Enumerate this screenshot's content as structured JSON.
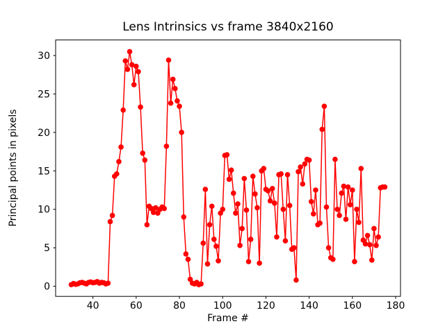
{
  "chart_data": {
    "type": "line",
    "title": "Lens Intrinsics vs frame 3840x2160",
    "xlabel": "Frame #",
    "ylabel": "Principal points in pixels",
    "legend": null,
    "grid": false,
    "line_color": "#ff0000",
    "marker": "o",
    "x_ticks": [
      40,
      60,
      80,
      100,
      120,
      140,
      160,
      180
    ],
    "y_ticks": [
      0,
      5,
      10,
      15,
      20,
      25,
      30
    ],
    "xlim": [
      22.75,
      182.25
    ],
    "ylim": [
      -1.32,
      32.02
    ],
    "x": [
      30,
      31,
      32,
      33,
      34,
      35,
      36,
      37,
      38,
      39,
      40,
      41,
      42,
      43,
      44,
      45,
      46,
      47,
      48,
      49,
      50,
      51,
      52,
      53,
      54,
      55,
      56,
      57,
      58,
      59,
      60,
      61,
      62,
      63,
      64,
      65,
      66,
      67,
      68,
      69,
      70,
      71,
      72,
      73,
      74,
      75,
      76,
      77,
      78,
      79,
      80,
      81,
      82,
      83,
      84,
      85,
      86,
      87,
      88,
      89,
      90,
      91,
      92,
      93,
      94,
      95,
      96,
      97,
      98,
      99,
      100,
      101,
      102,
      103,
      104,
      105,
      106,
      107,
      108,
      109,
      110,
      111,
      112,
      113,
      114,
      115,
      116,
      117,
      118,
      119,
      120,
      121,
      122,
      123,
      124,
      125,
      126,
      127,
      128,
      129,
      130,
      131,
      132,
      133,
      134,
      135,
      136,
      137,
      138,
      139,
      140,
      141,
      142,
      143,
      144,
      145,
      146,
      147,
      148,
      149,
      150,
      151,
      152,
      153,
      154,
      155,
      156,
      157,
      158,
      159,
      160,
      161,
      162,
      163,
      164,
      165,
      166,
      167,
      168,
      169,
      170,
      171,
      172,
      173,
      174,
      175
    ],
    "y": [
      0.2,
      0.35,
      0.25,
      0.3,
      0.45,
      0.5,
      0.4,
      0.3,
      0.5,
      0.55,
      0.45,
      0.5,
      0.6,
      0.4,
      0.5,
      0.45,
      0.3,
      0.4,
      8.4,
      9.2,
      14.3,
      14.6,
      16.2,
      18.1,
      22.9,
      29.3,
      28.2,
      30.5,
      28.8,
      26.2,
      28.6,
      27.9,
      23.3,
      17.3,
      16.4,
      8.0,
      10.4,
      10.1,
      9.6,
      10.2,
      9.5,
      10.0,
      10.3,
      10.1,
      18.2,
      29.4,
      23.8,
      26.9,
      25.7,
      24.1,
      23.4,
      20.0,
      9.0,
      4.2,
      3.5,
      0.9,
      0.4,
      0.3,
      0.5,
      0.2,
      0.3,
      5.6,
      12.6,
      2.9,
      8.0,
      10.4,
      6.1,
      5.2,
      3.3,
      9.5,
      10.0,
      17.0,
      17.1,
      13.9,
      15.1,
      12.1,
      9.5,
      10.7,
      5.3,
      7.5,
      14.0,
      9.9,
      3.2,
      6.1,
      14.3,
      12.0,
      10.2,
      3.0,
      15.0,
      15.3,
      12.6,
      12.4,
      11.1,
      12.7,
      10.8,
      6.4,
      14.5,
      14.6,
      10.0,
      5.9,
      14.5,
      10.5,
      4.8,
      5.0,
      0.8,
      14.9,
      15.5,
      13.3,
      15.9,
      16.5,
      16.4,
      11.0,
      9.4,
      12.5,
      8.0,
      8.2,
      20.4,
      23.4,
      10.3,
      5.0,
      3.7,
      3.5,
      16.5,
      10.0,
      9.2,
      12.1,
      13.0,
      8.7,
      12.9,
      10.6,
      12.5,
      3.2,
      10.0,
      8.3,
      15.3,
      6.0,
      5.5,
      6.6,
      5.4,
      3.4,
      7.5,
      5.3,
      6.4,
      12.8,
      12.9,
      12.9
    ]
  }
}
